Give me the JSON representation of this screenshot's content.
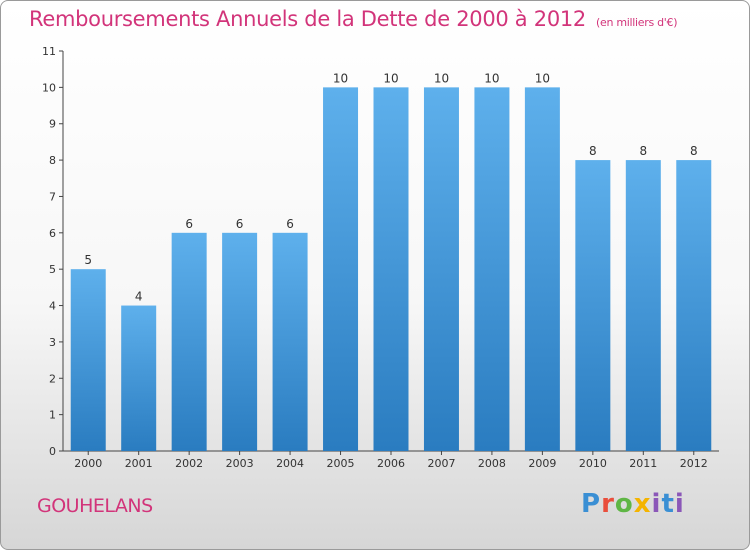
{
  "chart_data": {
    "type": "bar",
    "title": "Remboursements Annuels de la Dette de 2000 à 2012",
    "unit": "(en milliers d'€)",
    "categories": [
      "2000",
      "2001",
      "2002",
      "2003",
      "2004",
      "2005",
      "2006",
      "2007",
      "2008",
      "2009",
      "2010",
      "2011",
      "2012"
    ],
    "values": [
      5,
      4,
      6,
      6,
      6,
      10,
      10,
      10,
      10,
      10,
      8,
      8,
      8
    ],
    "ylim": [
      0,
      11
    ],
    "yticks": [
      0,
      1,
      2,
      3,
      4,
      5,
      6,
      7,
      8,
      9,
      10,
      11
    ],
    "grid": false,
    "bar_color": "#4da3e3"
  },
  "commune": "GOUHELANS",
  "logo": {
    "p": "P",
    "r": "r",
    "o": "o",
    "x": "x",
    "i": "i",
    "t": "t",
    "i2": "i"
  }
}
